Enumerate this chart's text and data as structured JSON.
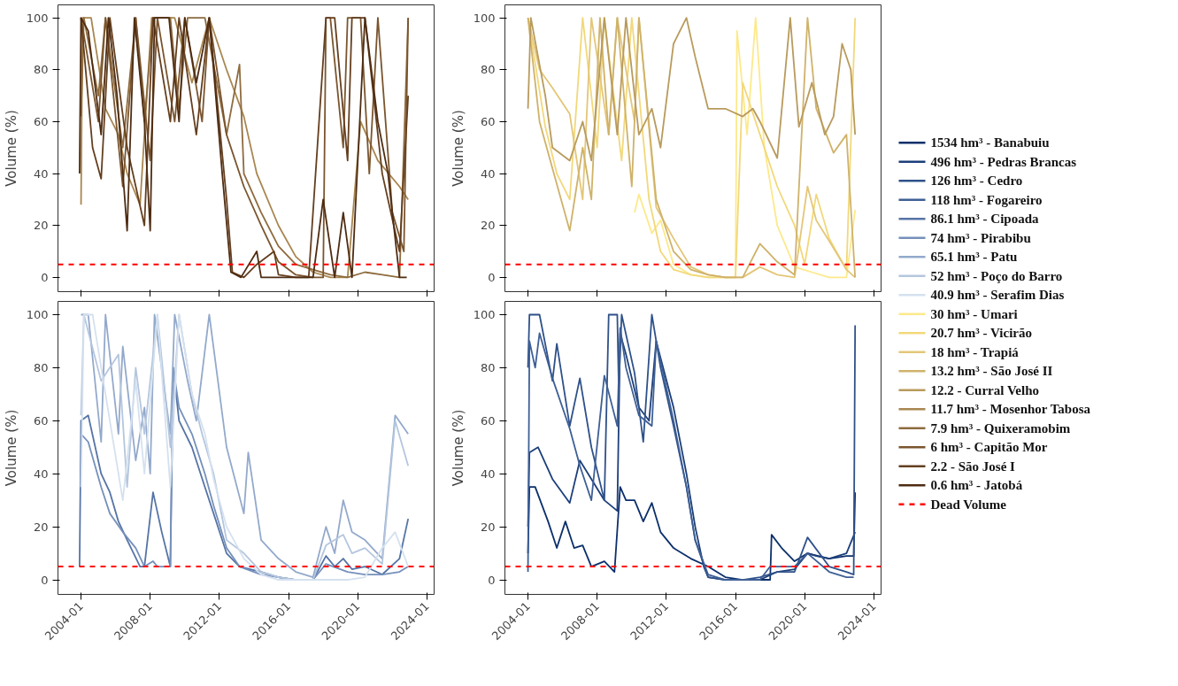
{
  "chart_data": [
    {
      "type": "line",
      "ylabel": "Volume (%)",
      "xlim": [
        "2002-09",
        "2024-06"
      ],
      "ylim": [
        -5.5,
        105
      ],
      "xticks": [
        "2004-01",
        "2008-01",
        "2012-01",
        "2016-01",
        "2020-01",
        "2024-01"
      ],
      "yticks": [
        0,
        20,
        40,
        60,
        80,
        100
      ],
      "tick_labels": "y",
      "legend": "right",
      "ref_lines": [
        {
          "axis": "y",
          "value": 5,
          "color": "#ff0000",
          "line_style": "dashed"
        }
      ],
      "series": [
        {
          "name": "11.7 hm³ - Mosenhor Tabosa",
          "color": "#a88650",
          "x": [
            "2004-01",
            "2004-02",
            "2004-08",
            "2005-06",
            "2006-03",
            "2006-09",
            "2007-06",
            "2008-02",
            "2009-06",
            "2010-06",
            "2011-06",
            "2012-06",
            "2013-06",
            "2014-03",
            "2015-06",
            "2016-06",
            "2017-06",
            "2018-06",
            "2019-06",
            "2020-03",
            "2021-03",
            "2022-06",
            "2022-12"
          ],
          "values": [
            28,
            100,
            100,
            65,
            55,
            40,
            28,
            100,
            100,
            75,
            100,
            80,
            62,
            40,
            20,
            8,
            2,
            0,
            0,
            60,
            45,
            35,
            30
          ]
        },
        {
          "name": "7.9 hm³ - Quixeramobim",
          "color": "#8e6b3e",
          "x": [
            "2004-01",
            "2004-03",
            "2005-01",
            "2005-06",
            "2006-06",
            "2007-03",
            "2007-09",
            "2008-03",
            "2009-03",
            "2009-09",
            "2010-03",
            "2011-03",
            "2012-06",
            "2013-03",
            "2013-06",
            "2014-06",
            "2015-06",
            "2016-06",
            "2017-06",
            "2018-06",
            "2019-06",
            "2020-06",
            "2021-06",
            "2022-06",
            "2022-12"
          ],
          "values": [
            62,
            100,
            70,
            100,
            50,
            100,
            60,
            100,
            100,
            65,
            100,
            100,
            55,
            82,
            40,
            25,
            12,
            5,
            3,
            1,
            0,
            2,
            1,
            0,
            100
          ]
        },
        {
          "name": "6 hm³ - Capitão Mor",
          "color": "#7a552e",
          "x": [
            "2004-01",
            "2005-01",
            "2005-06",
            "2006-06",
            "2007-03",
            "2008-01",
            "2008-06",
            "2009-06",
            "2010-01",
            "2011-01",
            "2011-06",
            "2012-06",
            "2013-06",
            "2014-06",
            "2015-06",
            "2016-06",
            "2017-06",
            "2018-01",
            "2018-03",
            "2018-06",
            "2019-03",
            "2019-06",
            "2020-03",
            "2020-09",
            "2021-03",
            "2022-01",
            "2022-09",
            "2022-12"
          ],
          "values": [
            100,
            60,
            100,
            35,
            100,
            45,
            100,
            60,
            100,
            60,
            100,
            55,
            35,
            20,
            6,
            1,
            0,
            0,
            100,
            100,
            50,
            100,
            100,
            40,
            100,
            25,
            10,
            100
          ]
        },
        {
          "name": "2.2 - São José I",
          "color": "#643f1f",
          "x": [
            "2004-01",
            "2004-09",
            "2005-03",
            "2005-09",
            "2006-09",
            "2007-09",
            "2008-03",
            "2009-03",
            "2009-09",
            "2010-09",
            "2011-06",
            "2012-06",
            "2012-10",
            "2013-06",
            "2014-03",
            "2015-03",
            "2015-06",
            "2016-06",
            "2017-03",
            "2018-03",
            "2018-09",
            "2019-06",
            "2019-09",
            "2020-06",
            "2021-06",
            "2022-06",
            "2022-12"
          ],
          "values": [
            100,
            50,
            38,
            100,
            50,
            20,
            100,
            60,
            100,
            55,
            100,
            30,
            2,
            0,
            5,
            10,
            1,
            0,
            0,
            100,
            100,
            45,
            100,
            100,
            40,
            10,
            70
          ]
        },
        {
          "name": "0.6 hm³ - Jatobá",
          "color": "#4e2c12",
          "x": [
            "2003-12",
            "2004-01",
            "2004-06",
            "2005-03",
            "2005-08",
            "2006-02",
            "2006-09",
            "2007-02",
            "2007-09",
            "2008-01",
            "2008-04",
            "2009-02",
            "2009-09",
            "2010-01",
            "2010-09",
            "2011-06",
            "2012-03",
            "2012-09",
            "2013-04",
            "2014-03",
            "2014-06",
            "2016-01",
            "2017-06",
            "2018-01",
            "2018-09",
            "2019-03",
            "2019-09",
            "2020-06",
            "2021-03",
            "2021-10",
            "2022-06",
            "2022-11"
          ],
          "values": [
            40,
            100,
            95,
            55,
            100,
            70,
            18,
            100,
            60,
            18,
            100,
            100,
            60,
            100,
            75,
            100,
            40,
            2,
            0,
            10,
            0,
            0,
            0,
            30,
            0,
            25,
            0,
            100,
            60,
            40,
            0,
            0
          ]
        }
      ]
    },
    {
      "type": "line",
      "ylabel": "Volume (%)",
      "xlim": [
        "2002-09",
        "2024-06"
      ],
      "ylim": [
        -5.5,
        105
      ],
      "xticks": [
        "2004-01",
        "2008-01",
        "2012-01",
        "2016-01",
        "2020-01",
        "2024-01"
      ],
      "yticks": [
        0,
        20,
        40,
        60,
        80,
        100
      ],
      "tick_labels": "y",
      "legend": "right",
      "ref_lines": [
        {
          "axis": "y",
          "value": 5,
          "color": "#ff0000",
          "line_style": "dashed"
        }
      ],
      "series": [
        {
          "name": "30 hm³ - Umari",
          "color": "#fde98a",
          "x": [
            "2010-03",
            "2010-06",
            "2011-03",
            "2011-09",
            "2012-06",
            "2013-06",
            "2014-06",
            "2015-06",
            "2016-01",
            "2016-02",
            "2016-09",
            "2017-03",
            "2017-09",
            "2018-06",
            "2019-06",
            "2020-06",
            "2021-06",
            "2022-06",
            "2022-12"
          ],
          "values": [
            25,
            32,
            17,
            22,
            5,
            1,
            0,
            0,
            0,
            95,
            55,
            100,
            50,
            20,
            4,
            2,
            0,
            0,
            26
          ]
        },
        {
          "name": "20.7 hm³ - Vicirão",
          "color": "#f2d87a",
          "x": [
            "2004-01",
            "2005-01",
            "2005-09",
            "2006-06",
            "2007-03",
            "2008-01",
            "2008-06",
            "2009-06",
            "2010-01",
            "2011-01",
            "2011-09",
            "2012-06",
            "2013-06",
            "2014-06",
            "2015-06",
            "2016-01",
            "2016-06",
            "2017-06",
            "2018-06",
            "2019-06",
            "2020-01",
            "2020-09",
            "2021-06",
            "2022-06",
            "2022-12"
          ],
          "values": [
            100,
            58,
            40,
            30,
            100,
            50,
            100,
            45,
            100,
            30,
            10,
            3,
            1,
            0,
            0,
            0,
            75,
            55,
            35,
            20,
            5,
            32,
            15,
            3,
            100
          ]
        },
        {
          "name": "18 hm³ - Trapiá",
          "color": "#e3c677",
          "x": [
            "2004-01",
            "2004-09",
            "2005-06",
            "2006-06",
            "2007-03",
            "2007-09",
            "2008-09",
            "2009-03",
            "2010-03",
            "2010-06",
            "2011-06",
            "2012-06",
            "2013-06",
            "2014-06",
            "2015-06",
            "2016-06",
            "2017-06",
            "2018-06",
            "2019-06",
            "2020-03",
            "2020-09",
            "2021-06",
            "2022-06",
            "2022-12"
          ],
          "values": [
            100,
            80,
            73,
            63,
            30,
            100,
            55,
            100,
            60,
            100,
            27,
            15,
            4,
            1,
            0,
            0,
            4,
            1,
            0,
            35,
            22,
            14,
            3,
            0
          ]
        },
        {
          "name": "13.2 hm³ - São José II",
          "color": "#cfb26a",
          "x": [
            "2004-01",
            "2004-09",
            "2005-06",
            "2006-06",
            "2007-03",
            "2007-09",
            "2008-03",
            "2008-09",
            "2009-03",
            "2010-01",
            "2010-06",
            "2011-06",
            "2012-06",
            "2013-06",
            "2014-06",
            "2015-06",
            "2016-06",
            "2017-06",
            "2018-06",
            "2019-06",
            "2020-03",
            "2020-09",
            "2021-09",
            "2022-06",
            "2022-12"
          ],
          "values": [
            100,
            60,
            42,
            18,
            50,
            30,
            100,
            55,
            100,
            35,
            100,
            30,
            10,
            3,
            1,
            0,
            0,
            13,
            6,
            1,
            100,
            65,
            48,
            55,
            0
          ]
        },
        {
          "name": "12.2 - Curral Velho",
          "color": "#b89a5c",
          "x": [
            "2004-01",
            "2004-03",
            "2005-01",
            "2005-06",
            "2006-06",
            "2007-03",
            "2007-09",
            "2008-06",
            "2009-03",
            "2009-09",
            "2010-06",
            "2011-03",
            "2011-09",
            "2012-06",
            "2013-03",
            "2013-09",
            "2014-06",
            "2015-06",
            "2016-06",
            "2017-01",
            "2017-06",
            "2018-06",
            "2019-03",
            "2019-09",
            "2020-06",
            "2021-03",
            "2021-09",
            "2022-03",
            "2022-09",
            "2022-12"
          ],
          "values": [
            65,
            100,
            70,
            50,
            45,
            60,
            45,
            100,
            55,
            100,
            55,
            65,
            50,
            90,
            100,
            85,
            65,
            65,
            62,
            65,
            60,
            46,
            100,
            58,
            75,
            55,
            62,
            90,
            80,
            55
          ]
        }
      ]
    },
    {
      "type": "line",
      "ylabel": "Volume (%)",
      "xlim": [
        "2002-09",
        "2024-06"
      ],
      "ylim": [
        -5.5,
        105
      ],
      "xticks": [
        "2004-01",
        "2008-01",
        "2012-01",
        "2016-01",
        "2020-01",
        "2024-01"
      ],
      "yticks": [
        0,
        20,
        40,
        60,
        80,
        100
      ],
      "legend": "right",
      "ref_lines": [
        {
          "axis": "y",
          "value": 5,
          "color": "#ff0000",
          "line_style": "dashed"
        }
      ],
      "series": [
        {
          "name": "86.1 hm³ - Cipoada",
          "color": "#5674a6",
          "x": [
            "2003-12",
            "2004-01",
            "2004-06",
            "2005-03",
            "2005-09",
            "2006-03",
            "2006-09",
            "2007-06",
            "2007-09",
            "2008-03",
            "2008-09",
            "2009-03",
            "2009-05",
            "2009-09",
            "2010-06",
            "2011-03",
            "2011-09",
            "2012-06",
            "2013-03",
            "2014-06",
            "2015-06",
            "2016-06",
            "2017-06",
            "2018-03",
            "2018-09",
            "2019-03",
            "2019-09",
            "2020-06",
            "2021-06",
            "2022-06",
            "2022-12"
          ],
          "values": [
            5,
            60,
            62,
            40,
            33,
            22,
            15,
            5,
            5,
            33,
            18,
            5,
            80,
            60,
            50,
            35,
            25,
            10,
            5,
            3,
            1,
            0,
            0,
            9,
            5,
            8,
            4,
            5,
            2,
            8,
            23
          ]
        },
        {
          "name": "74 hm³ - Pirabibu",
          "color": "#7590bb",
          "x": [
            "2004-01",
            "2004-06",
            "2005-03",
            "2005-09",
            "2006-06",
            "2007-03",
            "2007-09",
            "2008-03",
            "2008-06",
            "2009-03",
            "2009-05",
            "2009-09",
            "2010-06",
            "2011-03",
            "2011-09",
            "2012-06",
            "2013-03",
            "2014-06",
            "2015-06",
            "2016-06",
            "2017-06",
            "2018-03",
            "2019-06",
            "2020-06",
            "2021-06",
            "2022-06",
            "2022-12"
          ],
          "values": [
            55,
            52,
            35,
            25,
            18,
            12,
            5,
            7,
            5,
            5,
            80,
            65,
            55,
            40,
            28,
            12,
            5,
            2,
            1,
            0,
            0,
            6,
            3,
            2,
            2,
            3,
            5
          ]
        },
        {
          "name": "65.1 hm³ - Patu",
          "color": "#93a9cb",
          "x": [
            "2004-01",
            "2004-06",
            "2005-03",
            "2005-06",
            "2006-03",
            "2006-06",
            "2007-03",
            "2007-09",
            "2008-01",
            "2008-04",
            "2009-03",
            "2009-06",
            "2010-03",
            "2010-09",
            "2011-06",
            "2012-06",
            "2013-06",
            "2013-09",
            "2014-06",
            "2015-06",
            "2016-06",
            "2017-06",
            "2018-03",
            "2018-09",
            "2019-03",
            "2019-09",
            "2020-06",
            "2021-06",
            "2022-03",
            "2022-12"
          ],
          "values": [
            100,
            100,
            52,
            100,
            55,
            88,
            45,
            65,
            40,
            100,
            55,
            100,
            75,
            60,
            100,
            50,
            25,
            48,
            15,
            8,
            3,
            1,
            20,
            10,
            30,
            18,
            15,
            8,
            62,
            55
          ]
        },
        {
          "name": "52 hm³ - Poço do Barro",
          "color": "#b4c6de",
          "x": [
            "2004-01",
            "2004-03",
            "2005-03",
            "2006-03",
            "2006-09",
            "2007-03",
            "2007-09",
            "2008-06",
            "2009-03",
            "2009-09",
            "2010-06",
            "2011-01",
            "2011-09",
            "2012-06",
            "2013-06",
            "2014-06",
            "2015-06",
            "2016-06",
            "2017-06",
            "2018-03",
            "2019-03",
            "2019-09",
            "2020-06",
            "2021-06",
            "2022-03",
            "2022-12"
          ],
          "values": [
            62,
            100,
            75,
            85,
            35,
            80,
            55,
            100,
            50,
            100,
            70,
            55,
            40,
            15,
            10,
            3,
            1,
            0,
            0,
            13,
            17,
            10,
            12,
            6,
            60,
            43
          ]
        },
        {
          "name": "40.9 hm³ - Serafim Dias",
          "color": "#d5e1ef",
          "x": [
            "2004-01",
            "2004-03",
            "2004-09",
            "2005-06",
            "2006-06",
            "2007-03",
            "2007-09",
            "2008-06",
            "2009-03",
            "2009-09",
            "2010-06",
            "2011-03",
            "2011-09",
            "2012-06",
            "2013-06",
            "2014-06",
            "2015-06",
            "2016-06",
            "2017-06",
            "2018-06",
            "2019-06",
            "2020-06",
            "2021-06",
            "2022-03",
            "2022-12"
          ],
          "values": [
            35,
            100,
            100,
            70,
            30,
            75,
            40,
            100,
            35,
            100,
            70,
            55,
            38,
            20,
            8,
            2,
            0,
            0,
            0,
            0,
            0,
            1,
            12,
            18,
            5
          ]
        }
      ]
    },
    {
      "type": "line",
      "ylabel": "Volume (%)",
      "xlim": [
        "2002-09",
        "2024-06"
      ],
      "ylim": [
        -5.5,
        105
      ],
      "xticks": [
        "2004-01",
        "2008-01",
        "2012-01",
        "2016-01",
        "2020-01",
        "2024-01"
      ],
      "yticks": [
        0,
        20,
        40,
        60,
        80,
        100
      ],
      "legend": "right",
      "ref_lines": [
        {
          "axis": "y",
          "value": 5,
          "label": "Dead Volume",
          "color": "#ff0000",
          "line_style": "dashed"
        }
      ],
      "series": [
        {
          "name": "1534 hm³ - Banabuiu",
          "color": "#0b2f6b",
          "x": [
            "2004-01",
            "2004-02",
            "2004-06",
            "2005-03",
            "2005-09",
            "2006-03",
            "2006-09",
            "2007-03",
            "2007-09",
            "2008-06",
            "2009-01",
            "2009-05",
            "2009-09",
            "2010-03",
            "2010-09",
            "2011-03",
            "2011-09",
            "2012-06",
            "2013-06",
            "2014-06",
            "2015-06",
            "2016-06",
            "2017-06",
            "2018-01",
            "2018-02",
            "2018-09",
            "2019-06",
            "2020-03",
            "2021-06",
            "2022-06",
            "2022-11",
            "2022-12"
          ],
          "values": [
            10,
            35,
            35,
            22,
            12,
            22,
            12,
            13,
            5,
            7,
            3,
            35,
            30,
            30,
            22,
            29,
            18,
            12,
            8,
            5,
            1,
            0,
            0,
            0,
            17,
            12,
            7,
            10,
            8,
            9,
            9,
            33
          ]
        },
        {
          "name": "496 hm³ - Pedras Brancas",
          "color": "#1c3f7a",
          "x": [
            "2004-01",
            "2004-02",
            "2004-08",
            "2005-06",
            "2006-06",
            "2007-01",
            "2007-09",
            "2008-06",
            "2009-03",
            "2009-05",
            "2009-09",
            "2010-06",
            "2011-01",
            "2011-06",
            "2012-06",
            "2013-03",
            "2013-09",
            "2014-03",
            "2014-06",
            "2015-06",
            "2016-06",
            "2017-06",
            "2018-06",
            "2019-06",
            "2020-03",
            "2020-09",
            "2021-06",
            "2022-06",
            "2022-12"
          ],
          "values": [
            20,
            48,
            50,
            38,
            29,
            45,
            38,
            30,
            26,
            93,
            85,
            65,
            60,
            90,
            65,
            40,
            20,
            5,
            1,
            0,
            0,
            0,
            3,
            4,
            10,
            9,
            8,
            10,
            18
          ]
        },
        {
          "name": "126 hm³ - Cedro",
          "color": "#2e5189",
          "x": [
            "2004-01",
            "2004-02",
            "2004-09",
            "2005-06",
            "2005-09",
            "2006-06",
            "2007-01",
            "2007-09",
            "2008-06",
            "2008-09",
            "2009-03",
            "2009-04",
            "2009-06",
            "2010-03",
            "2010-09",
            "2011-03",
            "2011-09",
            "2012-06",
            "2013-03",
            "2013-09",
            "2014-06",
            "2015-06",
            "2016-06",
            "2017-06",
            "2018-06",
            "2019-06",
            "2020-03",
            "2021-06",
            "2022-06",
            "2022-11",
            "2022-12"
          ],
          "values": [
            80,
            100,
            100,
            75,
            89,
            58,
            76,
            50,
            30,
            100,
            100,
            72,
            100,
            78,
            52,
            100,
            80,
            58,
            35,
            15,
            1,
            0,
            0,
            1,
            3,
            3,
            16,
            5,
            3,
            2,
            96
          ]
        },
        {
          "name": "118 hm³ - Fogareiro",
          "color": "#3e5f95",
          "x": [
            "2004-01",
            "2004-02",
            "2004-06",
            "2004-09",
            "2005-06",
            "2006-06",
            "2007-01",
            "2007-09",
            "2008-06",
            "2009-03",
            "2009-05",
            "2009-09",
            "2010-06",
            "2011-03",
            "2011-06",
            "2012-06",
            "2013-03",
            "2013-09",
            "2014-06",
            "2015-06",
            "2016-06",
            "2017-06",
            "2018-01",
            "2019-06",
            "2020-03",
            "2021-06",
            "2022-06",
            "2022-11"
          ],
          "values": [
            3,
            90,
            80,
            93,
            76,
            57,
            43,
            30,
            77,
            58,
            95,
            80,
            62,
            58,
            90,
            60,
            35,
            15,
            2,
            0,
            0,
            0,
            5,
            5,
            10,
            3,
            1,
            1
          ]
        }
      ]
    }
  ]
}
